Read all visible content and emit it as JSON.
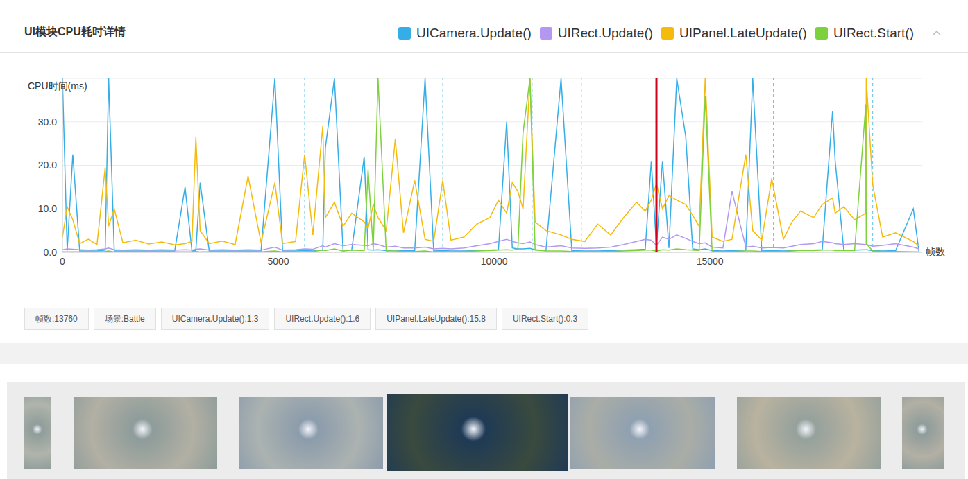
{
  "chart_data": {
    "type": "line",
    "title": "UI模块CPU耗时详情",
    "y_label": "CPU时间(ms)",
    "x_label": "帧数",
    "legend": "top-right",
    "grid": true,
    "xlim": [
      0,
      19900
    ],
    "xticks": [
      0,
      5000,
      10000,
      15000
    ],
    "ylim": [
      0,
      40
    ],
    "yticks": [
      {
        "value": 0,
        "label": "0.0"
      },
      {
        "value": 10,
        "label": "10.0"
      },
      {
        "value": 20,
        "label": "20.0"
      },
      {
        "value": 30,
        "label": "30.0"
      }
    ],
    "x": [
      0,
      110,
      240,
      400,
      600,
      800,
      990,
      1070,
      1200,
      1400,
      1700,
      2000,
      2300,
      2600,
      2840,
      3000,
      3090,
      3190,
      3400,
      3700,
      4000,
      4300,
      4600,
      4920,
      5100,
      5400,
      5610,
      5800,
      6030,
      6090,
      6300,
      6500,
      6700,
      6990,
      7080,
      7200,
      7310,
      7500,
      7710,
      7900,
      8160,
      8400,
      8600,
      8810,
      9000,
      9300,
      9600,
      9900,
      10100,
      10290,
      10420,
      10550,
      10670,
      10830,
      10950,
      11200,
      11550,
      11800,
      12100,
      12400,
      12700,
      13000,
      13300,
      13500,
      13640,
      13760,
      13900,
      14050,
      14230,
      14440,
      14600,
      14750,
      14890,
      15050,
      15300,
      15510,
      15830,
      15990,
      16200,
      16430,
      16700,
      16900,
      17100,
      17400,
      17600,
      17840,
      17900,
      18100,
      18350,
      18610,
      18620,
      18770,
      19000,
      19300,
      19710,
      19840
    ],
    "series": [
      {
        "name": "UICamera.Update()",
        "color": "#35aee8",
        "values": [
          40,
          0.4,
          22.5,
          0.3,
          0.3,
          0.3,
          0.5,
          40,
          0.3,
          0.3,
          0.3,
          0.3,
          0.3,
          0.3,
          15,
          0.3,
          0.4,
          16,
          0.3,
          0.3,
          0.3,
          0.3,
          0.3,
          40,
          0.3,
          0.3,
          0.4,
          0.3,
          0.5,
          24,
          40,
          0.5,
          0.5,
          22,
          0.6,
          0.5,
          0.6,
          0.4,
          0.5,
          0.4,
          0.4,
          40,
          0.3,
          0.4,
          0.3,
          0.3,
          0.4,
          0.5,
          0.6,
          30,
          1.0,
          0.8,
          0.8,
          0.9,
          0.6,
          0.4,
          40,
          0.4,
          0.3,
          0.3,
          0.4,
          0.5,
          0.6,
          0.7,
          21,
          1.3,
          21,
          1.0,
          40,
          26.5,
          0.8,
          0.6,
          0.8,
          0.4,
          0.3,
          0.4,
          0.5,
          40,
          0.3,
          0.4,
          0.3,
          0.4,
          0.5,
          0.5,
          0.6,
          32.5,
          21,
          0.5,
          0.5,
          0.6,
          0.6,
          0.4,
          0.3,
          0.4,
          10.0,
          0.3
        ]
      },
      {
        "name": "UIRect.Update()",
        "color": "#b497f0",
        "values": [
          0.6,
          0.8,
          0.7,
          0.6,
          0.5,
          0.6,
          0.8,
          1.0,
          0.6,
          0.5,
          0.6,
          0.5,
          0.6,
          0.5,
          0.6,
          0.5,
          0.7,
          0.8,
          0.5,
          0.6,
          0.5,
          0.6,
          0.5,
          1.2,
          0.5,
          0.6,
          0.8,
          0.7,
          1.5,
          1.2,
          2.0,
          1.5,
          1.8,
          1.6,
          1.5,
          2.0,
          1.8,
          1.2,
          1.4,
          1.0,
          1.0,
          1.2,
          0.8,
          0.9,
          0.8,
          1.0,
          1.5,
          2.0,
          2.5,
          3.0,
          2.5,
          2.2,
          2.0,
          2.4,
          1.8,
          1.2,
          1.5,
          1.0,
          0.9,
          1.0,
          1.2,
          1.8,
          2.5,
          3.0,
          2.8,
          1.6,
          3.5,
          3.0,
          4.0,
          3.2,
          2.5,
          2.0,
          2.2,
          1.2,
          1.0,
          14.0,
          1.2,
          1.4,
          1.0,
          1.1,
          1.0,
          1.4,
          1.8,
          2.0,
          2.5,
          2.2,
          2.0,
          1.8,
          2.0,
          1.8,
          1.8,
          1.4,
          1.6,
          2.0,
          1.2,
          0.8
        ]
      },
      {
        "name": "UIPanel.LateUpdate()",
        "color": "#f5bb0c",
        "values": [
          3.5,
          10.5,
          7.5,
          2.0,
          3.0,
          1.8,
          19.5,
          6.0,
          10.0,
          2.2,
          2.8,
          1.9,
          2.4,
          1.7,
          2.0,
          2.5,
          26.5,
          5.0,
          2.0,
          2.6,
          1.8,
          17.5,
          2.2,
          16.0,
          2.0,
          2.5,
          22.5,
          4.0,
          29.0,
          8.0,
          11.5,
          6.0,
          9.0,
          7.0,
          5.5,
          11.0,
          8.0,
          5.0,
          26.0,
          4.5,
          16.5,
          3.0,
          2.5,
          16.5,
          2.8,
          3.5,
          6.5,
          8.0,
          12.0,
          9.0,
          16.0,
          14.0,
          10.0,
          40,
          7.0,
          5.0,
          4.0,
          3.0,
          2.5,
          6.5,
          4.0,
          8.0,
          11.5,
          9.5,
          12.0,
          15.8,
          10.0,
          13.0,
          12.0,
          11.0,
          8.5,
          6.0,
          40,
          3.5,
          2.5,
          3.0,
          22.5,
          5.0,
          2.8,
          17.0,
          3.0,
          7.0,
          9.5,
          8.0,
          11.0,
          12.5,
          9.0,
          10.5,
          7.5,
          9.0,
          40,
          15.5,
          3.5,
          4.5,
          2.5,
          1.5
        ]
      },
      {
        "name": "UIRect.Start()",
        "color": "#7dd13c",
        "values": [
          0.1,
          0.1,
          0.1,
          0.1,
          0.1,
          0.1,
          0.2,
          0.3,
          0.1,
          0.1,
          0.1,
          0.1,
          0.1,
          0.1,
          0.1,
          0.1,
          0.2,
          0.1,
          0.1,
          0.1,
          0.1,
          0.1,
          0.1,
          0.3,
          0.1,
          0.1,
          0.1,
          0.2,
          0.5,
          0.4,
          0.8,
          0.3,
          0.5,
          0.4,
          19.0,
          0.6,
          40,
          0.3,
          0.3,
          0.2,
          0.2,
          0.3,
          0.1,
          0.2,
          0.1,
          0.2,
          0.3,
          0.4,
          0.5,
          0.6,
          0.5,
          0.8,
          27.5,
          40,
          0.5,
          0.3,
          0.3,
          0.2,
          0.1,
          0.2,
          0.2,
          0.3,
          0.4,
          0.5,
          0.5,
          0.3,
          0.6,
          0.5,
          0.8,
          0.6,
          0.5,
          0.4,
          36,
          0.2,
          0.2,
          0.2,
          0.3,
          0.3,
          0.2,
          0.2,
          0.2,
          0.3,
          0.4,
          0.4,
          0.5,
          0.5,
          0.4,
          0.4,
          0.4,
          34,
          2.0,
          0.3,
          0.2,
          0.2,
          0.1,
          0.1
        ]
      }
    ],
    "cursor": 13760,
    "vertical_lines": [
      5610,
      7450,
      8810,
      10880,
      12020,
      16470,
      18770
    ],
    "annotations": [
      "帧数:13760",
      "场景:Battle",
      "UICamera.Update():1.3",
      "UIRect.Update():1.6",
      "UIPanel.LateUpdate():15.8",
      "UIRect.Start():0.3"
    ]
  }
}
